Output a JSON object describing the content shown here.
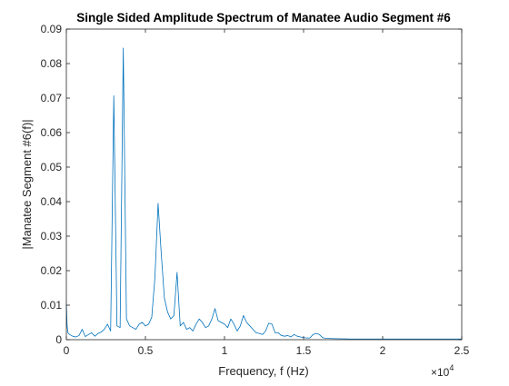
{
  "chart_data": {
    "type": "line",
    "title": "Single Sided Amplitude Spectrum of Manatee Audio Segment #6",
    "xlabel": "Frequency, f (Hz)",
    "ylabel": "|Manatee Segment #6(f)|",
    "x_multiplier_label": "×10",
    "x_multiplier_exponent": "4",
    "xlim": [
      0,
      2.5
    ],
    "ylim": [
      0,
      0.09
    ],
    "xticks": [
      0,
      0.5,
      1,
      1.5,
      2,
      2.5
    ],
    "xtick_labels": [
      "0",
      "0.5",
      "1",
      "1.5",
      "2",
      "2.5"
    ],
    "yticks": [
      0,
      0.01,
      0.02,
      0.03,
      0.04,
      0.05,
      0.06,
      0.07,
      0.08,
      0.09
    ],
    "ytick_labels": [
      "0",
      "0.01",
      "0.02",
      "0.03",
      "0.04",
      "0.05",
      "0.06",
      "0.07",
      "0.08",
      "0.09"
    ],
    "grid": false,
    "line_color": "#0072BD",
    "series": [
      {
        "x": [
          0,
          0.005,
          0.01,
          0.02,
          0.04,
          0.06,
          0.08,
          0.1,
          0.12,
          0.14,
          0.16,
          0.18,
          0.2,
          0.22,
          0.24,
          0.26,
          0.28,
          0.3,
          0.32,
          0.34,
          0.36,
          0.38,
          0.4,
          0.42,
          0.44,
          0.46,
          0.48,
          0.5,
          0.52,
          0.54,
          0.56,
          0.58,
          0.6,
          0.62,
          0.64,
          0.66,
          0.68,
          0.7,
          0.72,
          0.74,
          0.76,
          0.78,
          0.8,
          0.82,
          0.84,
          0.86,
          0.88,
          0.9,
          0.92,
          0.94,
          0.96,
          0.98,
          1.0,
          1.02,
          1.04,
          1.06,
          1.08,
          1.1,
          1.12,
          1.14,
          1.16,
          1.18,
          1.2,
          1.22,
          1.24,
          1.26,
          1.28,
          1.3,
          1.32,
          1.34,
          1.36,
          1.38,
          1.4,
          1.42,
          1.44,
          1.46,
          1.48,
          1.5,
          1.52,
          1.54,
          1.56,
          1.58,
          1.6,
          1.62,
          1.64,
          1.7,
          1.8,
          1.9,
          2.0,
          2.1,
          2.2,
          2.3,
          2.4,
          2.5
        ],
        "y": [
          0.0105,
          0.004,
          0.002,
          0.0015,
          0.001,
          0.0008,
          0.0012,
          0.003,
          0.0009,
          0.0015,
          0.002,
          0.001,
          0.0018,
          0.0022,
          0.003,
          0.0045,
          0.0025,
          0.0707,
          0.004,
          0.0035,
          0.0845,
          0.006,
          0.004,
          0.0035,
          0.003,
          0.0045,
          0.005,
          0.004,
          0.0045,
          0.0065,
          0.018,
          0.0395,
          0.025,
          0.012,
          0.008,
          0.006,
          0.007,
          0.0195,
          0.004,
          0.005,
          0.003,
          0.0035,
          0.0025,
          0.0045,
          0.006,
          0.005,
          0.0035,
          0.004,
          0.006,
          0.009,
          0.0055,
          0.005,
          0.0045,
          0.0035,
          0.006,
          0.0045,
          0.0025,
          0.004,
          0.007,
          0.005,
          0.004,
          0.003,
          0.002,
          0.0018,
          0.0015,
          0.0025,
          0.0048,
          0.0045,
          0.002,
          0.002,
          0.0012,
          0.001,
          0.0012,
          0.0008,
          0.0015,
          0.001,
          0.0008,
          0.0006,
          0.0005,
          0.0005,
          0.0015,
          0.0018,
          0.0015,
          0.0006,
          0.0004,
          0.0003,
          0.0002,
          0.0002,
          0.0002,
          0.0002,
          0.0002,
          0.0002,
          0.0002,
          0.0002
        ]
      }
    ]
  }
}
